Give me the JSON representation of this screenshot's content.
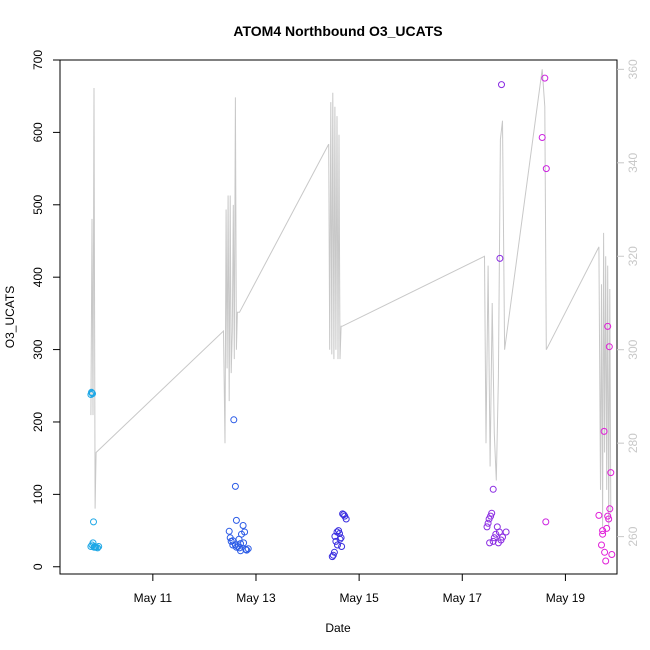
{
  "chart_data": {
    "type": "scatter",
    "title": "ATOM4 Northbound O3_UCATS",
    "xlabel": "Date",
    "ylabel": "O3_UCATS",
    "x_ticks": [
      "May 11",
      "May 13",
      "May 15",
      "May 17",
      "May 19"
    ],
    "x_tick_days": [
      11,
      13,
      15,
      17,
      19
    ],
    "xlim_days": [
      9.2,
      20.0
    ],
    "ylim": [
      -10,
      700
    ],
    "y_ticks": [
      0,
      100,
      200,
      300,
      400,
      500,
      600,
      700
    ],
    "y2lim": [
      252,
      362
    ],
    "y2_ticks": [
      260,
      280,
      300,
      320,
      340,
      360
    ],
    "grid": false,
    "legend": "none",
    "series": [
      {
        "kind": "points",
        "axis": "left",
        "x_day": [
          9.8,
          9.81,
          9.82,
          9.83,
          9.85,
          9.87,
          9.82,
          9.84,
          9.9,
          9.93,
          9.95,
          9.8,
          9.86,
          9.88,
          12.48,
          12.5,
          12.52,
          12.55,
          12.57,
          12.6,
          12.62,
          12.65,
          12.68,
          12.7,
          12.72,
          12.75,
          12.78,
          12.8,
          12.82,
          12.85,
          12.6,
          12.55,
          12.7,
          12.76,
          12.62,
          12.67,
          14.48,
          14.5,
          14.52,
          14.55,
          14.57,
          14.6,
          14.62,
          14.65,
          14.68,
          14.7,
          14.72,
          14.75,
          14.58,
          14.63,
          14.53,
          14.66,
          17.48,
          17.5,
          17.52,
          17.55,
          17.57,
          17.6,
          17.62,
          17.65,
          17.68,
          17.7,
          17.72,
          17.75,
          17.78,
          17.85,
          17.73,
          17.76,
          17.6,
          17.53,
          18.55,
          18.6,
          18.63,
          18.62,
          19.65,
          19.7,
          19.72,
          19.75,
          19.78,
          19.8,
          19.82,
          19.85,
          19.88,
          19.9,
          19.72,
          19.82,
          19.84,
          19.76,
          19.86
        ],
        "y": [
          238,
          241,
          240,
          239,
          62,
          28,
          30,
          33,
          27,
          26,
          28,
          28,
          27,
          27,
          49,
          40,
          35,
          30,
          203,
          111,
          64,
          28,
          26,
          32,
          45,
          57,
          48,
          24,
          23,
          25,
          30,
          36,
          22,
          33,
          27,
          38,
          14,
          16,
          20,
          35,
          48,
          50,
          46,
          40,
          73,
          72,
          70,
          66,
          30,
          38,
          42,
          28,
          55,
          60,
          66,
          70,
          74,
          35,
          40,
          45,
          55,
          33,
          48,
          37,
          41,
          48,
          426,
          666,
          107,
          33,
          593,
          675,
          550,
          62,
          71,
          30,
          50,
          187,
          8,
          53,
          332,
          304,
          130,
          17,
          45,
          70,
          66,
          20,
          80
        ],
        "colors_by_day": {
          "9": "#1fa8e6",
          "12": "#2a5ae6",
          "14": "#3a2ee0",
          "17": "#8a2be2",
          "18": "#cc22e0",
          "19": "#e01fd8"
        }
      },
      {
        "kind": "line",
        "axis": "right",
        "color": "#c8c8c8",
        "x_day": [
          9.8,
          9.82,
          9.84,
          9.86,
          9.88,
          9.9,
          12.37,
          12.4,
          12.42,
          12.44,
          12.46,
          12.48,
          12.5,
          12.52,
          12.54,
          12.56,
          12.58,
          12.6,
          12.62,
          12.64,
          12.66,
          12.68,
          14.41,
          14.43,
          14.45,
          14.47,
          14.49,
          14.51,
          14.53,
          14.55,
          14.57,
          14.59,
          14.61,
          14.63,
          14.65,
          14.67,
          17.43,
          17.46,
          17.5,
          17.54,
          17.58,
          17.62,
          17.66,
          17.7,
          17.74,
          17.78,
          17.82,
          18.55,
          18.6,
          18.63,
          19.65,
          19.68,
          19.7,
          19.72,
          19.74,
          19.76,
          19.78,
          19.8,
          19.82,
          19.84,
          19.86,
          19.88
        ],
        "y2": [
          286,
          328,
          286,
          356,
          266,
          278,
          304,
          280,
          330,
          296,
          333,
          289,
          333,
          295,
          304,
          331,
          298,
          354,
          300,
          308,
          308,
          308,
          344,
          300,
          353,
          299,
          355,
          298,
          352,
          300,
          350,
          298,
          346,
          298,
          305,
          305,
          320,
          280,
          318,
          275,
          310,
          282,
          272,
          294,
          345,
          349,
          300,
          360,
          352,
          300,
          322,
          270,
          314,
          262,
          325,
          278,
          320,
          270,
          318,
          262,
          313,
          265
        ]
      }
    ]
  }
}
